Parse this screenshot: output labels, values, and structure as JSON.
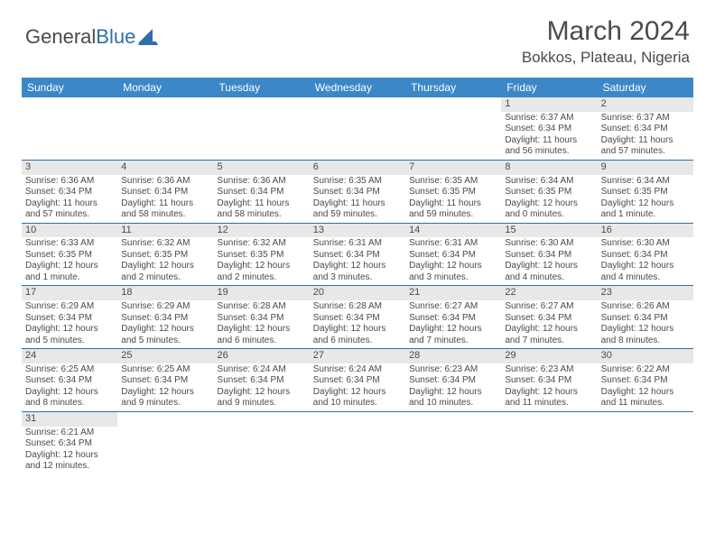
{
  "brand": {
    "name1": "General",
    "name2": "Blue"
  },
  "title": "March 2024",
  "location": "Bokkos, Plateau, Nigeria",
  "colors": {
    "header_bg": "#3b87c8",
    "header_text": "#ffffff",
    "daynum_bg": "#e8e8e8",
    "rule": "#2f6fa8",
    "text": "#4a4a4a",
    "brand_blue": "#2f6fa8"
  },
  "dows": [
    "Sunday",
    "Monday",
    "Tuesday",
    "Wednesday",
    "Thursday",
    "Friday",
    "Saturday"
  ],
  "weeks": [
    [
      {
        "n": "",
        "sr": "",
        "ss": "",
        "dl": ""
      },
      {
        "n": "",
        "sr": "",
        "ss": "",
        "dl": ""
      },
      {
        "n": "",
        "sr": "",
        "ss": "",
        "dl": ""
      },
      {
        "n": "",
        "sr": "",
        "ss": "",
        "dl": ""
      },
      {
        "n": "",
        "sr": "",
        "ss": "",
        "dl": ""
      },
      {
        "n": "1",
        "sr": "Sunrise: 6:37 AM",
        "ss": "Sunset: 6:34 PM",
        "dl": "Daylight: 11 hours and 56 minutes."
      },
      {
        "n": "2",
        "sr": "Sunrise: 6:37 AM",
        "ss": "Sunset: 6:34 PM",
        "dl": "Daylight: 11 hours and 57 minutes."
      }
    ],
    [
      {
        "n": "3",
        "sr": "Sunrise: 6:36 AM",
        "ss": "Sunset: 6:34 PM",
        "dl": "Daylight: 11 hours and 57 minutes."
      },
      {
        "n": "4",
        "sr": "Sunrise: 6:36 AM",
        "ss": "Sunset: 6:34 PM",
        "dl": "Daylight: 11 hours and 58 minutes."
      },
      {
        "n": "5",
        "sr": "Sunrise: 6:36 AM",
        "ss": "Sunset: 6:34 PM",
        "dl": "Daylight: 11 hours and 58 minutes."
      },
      {
        "n": "6",
        "sr": "Sunrise: 6:35 AM",
        "ss": "Sunset: 6:34 PM",
        "dl": "Daylight: 11 hours and 59 minutes."
      },
      {
        "n": "7",
        "sr": "Sunrise: 6:35 AM",
        "ss": "Sunset: 6:35 PM",
        "dl": "Daylight: 11 hours and 59 minutes."
      },
      {
        "n": "8",
        "sr": "Sunrise: 6:34 AM",
        "ss": "Sunset: 6:35 PM",
        "dl": "Daylight: 12 hours and 0 minutes."
      },
      {
        "n": "9",
        "sr": "Sunrise: 6:34 AM",
        "ss": "Sunset: 6:35 PM",
        "dl": "Daylight: 12 hours and 1 minute."
      }
    ],
    [
      {
        "n": "10",
        "sr": "Sunrise: 6:33 AM",
        "ss": "Sunset: 6:35 PM",
        "dl": "Daylight: 12 hours and 1 minute."
      },
      {
        "n": "11",
        "sr": "Sunrise: 6:32 AM",
        "ss": "Sunset: 6:35 PM",
        "dl": "Daylight: 12 hours and 2 minutes."
      },
      {
        "n": "12",
        "sr": "Sunrise: 6:32 AM",
        "ss": "Sunset: 6:35 PM",
        "dl": "Daylight: 12 hours and 2 minutes."
      },
      {
        "n": "13",
        "sr": "Sunrise: 6:31 AM",
        "ss": "Sunset: 6:34 PM",
        "dl": "Daylight: 12 hours and 3 minutes."
      },
      {
        "n": "14",
        "sr": "Sunrise: 6:31 AM",
        "ss": "Sunset: 6:34 PM",
        "dl": "Daylight: 12 hours and 3 minutes."
      },
      {
        "n": "15",
        "sr": "Sunrise: 6:30 AM",
        "ss": "Sunset: 6:34 PM",
        "dl": "Daylight: 12 hours and 4 minutes."
      },
      {
        "n": "16",
        "sr": "Sunrise: 6:30 AM",
        "ss": "Sunset: 6:34 PM",
        "dl": "Daylight: 12 hours and 4 minutes."
      }
    ],
    [
      {
        "n": "17",
        "sr": "Sunrise: 6:29 AM",
        "ss": "Sunset: 6:34 PM",
        "dl": "Daylight: 12 hours and 5 minutes."
      },
      {
        "n": "18",
        "sr": "Sunrise: 6:29 AM",
        "ss": "Sunset: 6:34 PM",
        "dl": "Daylight: 12 hours and 5 minutes."
      },
      {
        "n": "19",
        "sr": "Sunrise: 6:28 AM",
        "ss": "Sunset: 6:34 PM",
        "dl": "Daylight: 12 hours and 6 minutes."
      },
      {
        "n": "20",
        "sr": "Sunrise: 6:28 AM",
        "ss": "Sunset: 6:34 PM",
        "dl": "Daylight: 12 hours and 6 minutes."
      },
      {
        "n": "21",
        "sr": "Sunrise: 6:27 AM",
        "ss": "Sunset: 6:34 PM",
        "dl": "Daylight: 12 hours and 7 minutes."
      },
      {
        "n": "22",
        "sr": "Sunrise: 6:27 AM",
        "ss": "Sunset: 6:34 PM",
        "dl": "Daylight: 12 hours and 7 minutes."
      },
      {
        "n": "23",
        "sr": "Sunrise: 6:26 AM",
        "ss": "Sunset: 6:34 PM",
        "dl": "Daylight: 12 hours and 8 minutes."
      }
    ],
    [
      {
        "n": "24",
        "sr": "Sunrise: 6:25 AM",
        "ss": "Sunset: 6:34 PM",
        "dl": "Daylight: 12 hours and 8 minutes."
      },
      {
        "n": "25",
        "sr": "Sunrise: 6:25 AM",
        "ss": "Sunset: 6:34 PM",
        "dl": "Daylight: 12 hours and 9 minutes."
      },
      {
        "n": "26",
        "sr": "Sunrise: 6:24 AM",
        "ss": "Sunset: 6:34 PM",
        "dl": "Daylight: 12 hours and 9 minutes."
      },
      {
        "n": "27",
        "sr": "Sunrise: 6:24 AM",
        "ss": "Sunset: 6:34 PM",
        "dl": "Daylight: 12 hours and 10 minutes."
      },
      {
        "n": "28",
        "sr": "Sunrise: 6:23 AM",
        "ss": "Sunset: 6:34 PM",
        "dl": "Daylight: 12 hours and 10 minutes."
      },
      {
        "n": "29",
        "sr": "Sunrise: 6:23 AM",
        "ss": "Sunset: 6:34 PM",
        "dl": "Daylight: 12 hours and 11 minutes."
      },
      {
        "n": "30",
        "sr": "Sunrise: 6:22 AM",
        "ss": "Sunset: 6:34 PM",
        "dl": "Daylight: 12 hours and 11 minutes."
      }
    ],
    [
      {
        "n": "31",
        "sr": "Sunrise: 6:21 AM",
        "ss": "Sunset: 6:34 PM",
        "dl": "Daylight: 12 hours and 12 minutes."
      },
      {
        "n": "",
        "sr": "",
        "ss": "",
        "dl": ""
      },
      {
        "n": "",
        "sr": "",
        "ss": "",
        "dl": ""
      },
      {
        "n": "",
        "sr": "",
        "ss": "",
        "dl": ""
      },
      {
        "n": "",
        "sr": "",
        "ss": "",
        "dl": ""
      },
      {
        "n": "",
        "sr": "",
        "ss": "",
        "dl": ""
      },
      {
        "n": "",
        "sr": "",
        "ss": "",
        "dl": ""
      }
    ]
  ]
}
